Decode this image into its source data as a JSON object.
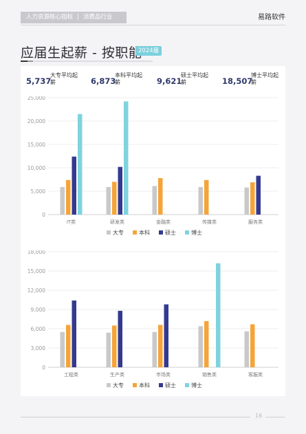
{
  "header": {
    "tag_left": "人力资源核心指标",
    "tag_sep": "|",
    "tag_right": "消费品行业",
    "brand": "易路软件"
  },
  "title": "应届生起薪 - 按职能",
  "year_badge": "2024届",
  "stats": [
    {
      "value": "5,737",
      "label": "大专平均起薪"
    },
    {
      "value": "6,873",
      "label": "本科平均起薪"
    },
    {
      "value": "9,621",
      "label": "硕士平均起薪"
    },
    {
      "value": "18,507",
      "label": "博士平均起薪"
    }
  ],
  "colors": {
    "大专": "#c9c9c9",
    "本科": "#f5a43a",
    "硕士": "#343a8f",
    "博士": "#7fd3df"
  },
  "chart_data": [
    {
      "type": "bar",
      "categories": [
        "IT类",
        "研发类",
        "金融类",
        "传媒类",
        "服务类"
      ],
      "series": [
        {
          "name": "大专",
          "values": [
            5900,
            5900,
            6100,
            5900,
            5800
          ]
        },
        {
          "name": "本科",
          "values": [
            7400,
            7000,
            7800,
            7400,
            6900
          ]
        },
        {
          "name": "硕士",
          "values": [
            12400,
            10200,
            null,
            null,
            8300
          ]
        },
        {
          "name": "博士",
          "values": [
            21500,
            24200,
            null,
            null,
            null
          ]
        }
      ],
      "ylim": [
        0,
        25000
      ],
      "yticks": [
        "0",
        "5,000",
        "10,000",
        "15,000",
        "20,000",
        "25,000"
      ],
      "grid": true,
      "legend": "bottom"
    },
    {
      "type": "bar",
      "categories": [
        "工程类",
        "生产类",
        "市场类",
        "销售类",
        "客服类"
      ],
      "series": [
        {
          "name": "大专",
          "values": [
            5500,
            5400,
            5500,
            6400,
            5600
          ]
        },
        {
          "name": "本科",
          "values": [
            6600,
            6500,
            6600,
            7200,
            6700
          ]
        },
        {
          "name": "硕士",
          "values": [
            10400,
            8800,
            9800,
            null,
            null
          ]
        },
        {
          "name": "博士",
          "values": [
            null,
            null,
            null,
            16200,
            null
          ]
        }
      ],
      "ylim": [
        0,
        18000
      ],
      "yticks": [
        "0",
        "3,000",
        "6,000",
        "9,000",
        "12,000",
        "15,000",
        "18,000"
      ],
      "grid": true,
      "legend": "bottom"
    }
  ],
  "page_number": "16"
}
